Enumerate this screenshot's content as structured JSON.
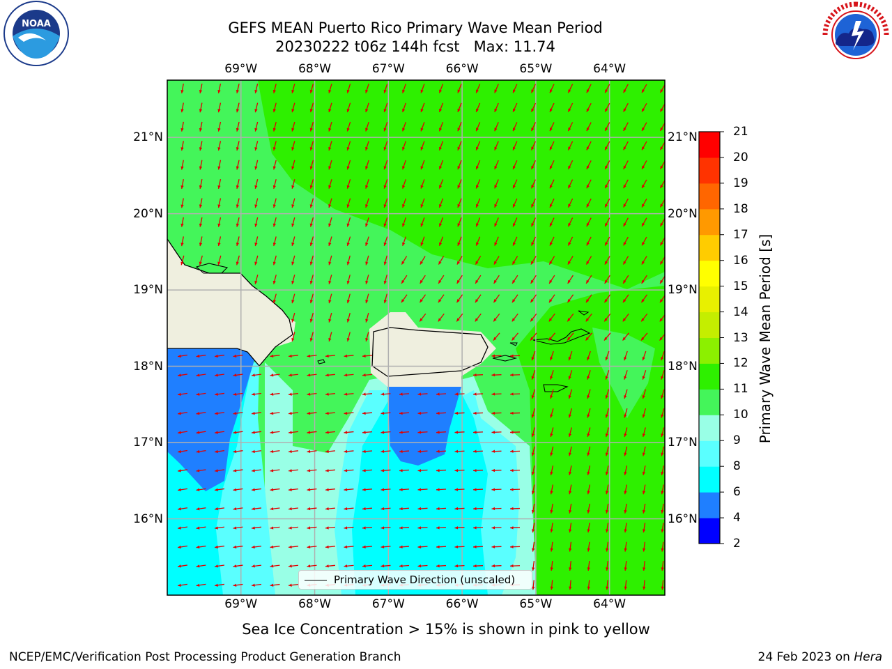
{
  "title": {
    "line1": "GEFS MEAN Puerto Rico Primary Wave Mean Period",
    "line2": "20230222 t06z 144h fcst   Max: 11.74"
  },
  "logos": {
    "left": {
      "icon": "noaa-logo-icon",
      "text": "NOAA"
    },
    "right": {
      "icon": "national-weather-service-logo-icon"
    }
  },
  "map": {
    "lon_labels": [
      "69°W",
      "68°W",
      "67°W",
      "66°W",
      "65°W",
      "64°W"
    ],
    "lat_labels": [
      "21°N",
      "20°N",
      "19°N",
      "18°N",
      "17°N",
      "16°N"
    ],
    "lon_range": [
      -70.0,
      -63.25
    ],
    "lat_range": [
      15.0,
      21.75
    ],
    "grid": true,
    "vector_color": "#e00000",
    "legend": {
      "label": "Primary Wave Direction (unscaled)",
      "placement": "bottom-center"
    }
  },
  "colorbar": {
    "label": "Primary Wave Mean Period [s]",
    "ticks": [
      "21",
      "20",
      "19",
      "18",
      "17",
      "16",
      "15",
      "14",
      "13",
      "12",
      "11",
      "10",
      "9",
      "8",
      "6",
      "4",
      "2"
    ],
    "bins": [
      {
        "from": 2,
        "to": 4,
        "color": "#0000ff"
      },
      {
        "from": 4,
        "to": 6,
        "color": "#1f7fff"
      },
      {
        "from": 6,
        "to": 8,
        "color": "#00ffff"
      },
      {
        "from": 8,
        "to": 9,
        "color": "#5affff"
      },
      {
        "from": 9,
        "to": 10,
        "color": "#99ffe6"
      },
      {
        "from": 10,
        "to": 11,
        "color": "#44f55a"
      },
      {
        "from": 11,
        "to": 12,
        "color": "#2ef000"
      },
      {
        "from": 12,
        "to": 13,
        "color": "#8cf000"
      },
      {
        "from": 13,
        "to": 14,
        "color": "#c4ee00"
      },
      {
        "from": 14,
        "to": 15,
        "color": "#e8f000"
      },
      {
        "from": 15,
        "to": 16,
        "color": "#ffff00"
      },
      {
        "from": 16,
        "to": 17,
        "color": "#ffcc00"
      },
      {
        "from": 17,
        "to": 18,
        "color": "#ff9900"
      },
      {
        "from": 18,
        "to": 19,
        "color": "#ff6600"
      },
      {
        "from": 19,
        "to": 20,
        "color": "#ff3300"
      },
      {
        "from": 20,
        "to": 21,
        "color": "#ff0000"
      }
    ]
  },
  "colors": {
    "land": "#efefdf",
    "period_10_11": "#44f55a",
    "period_11_12": "#2ef000",
    "period_9_10": "#99ffe6",
    "period_8_9": "#5affff",
    "period_6_8": "#00ffff",
    "period_4_6": "#1f7fff"
  },
  "ice_note": "Sea Ice Concentration > 15% is shown in pink to yellow",
  "footer": {
    "left": "NCEP/EMC/Verification Post Processing Product Generation Branch",
    "date": "24 Feb 2023 on ",
    "host": "Hera"
  }
}
